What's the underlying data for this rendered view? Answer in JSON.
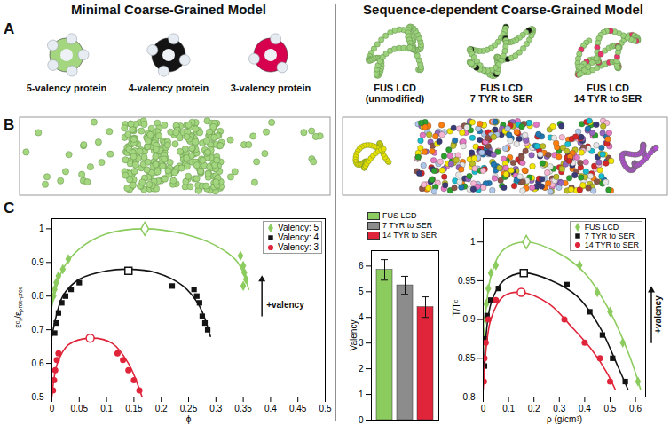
{
  "headings": [
    "Minimal Coarse-Grained Model",
    "Sequence-dependent Coarse-Grained Model"
  ],
  "panel_letters": [
    "A",
    "B",
    "C"
  ],
  "minimal_model": [
    {
      "label": "5-valency protein",
      "valency": 5,
      "color": "#a3d67f"
    },
    {
      "label": "4-valency protein",
      "valency": 4,
      "color": "#141414"
    },
    {
      "label": "3-valency protein",
      "valency": 3,
      "color": "#d6004f"
    }
  ],
  "sequence_model": [
    {
      "label_lines": [
        "FUS LCD",
        "(unmodified)"
      ],
      "modified_residues": 0,
      "chain_color": "#9bd17a",
      "color": "#141414"
    },
    {
      "label_lines": [
        "FUS LCD",
        "7 TYR to SER"
      ],
      "modified_residues": 7,
      "chain_color": "#9bd17a",
      "color": "#141414"
    },
    {
      "label_lines": [
        "FUS LCD",
        "14 TYR to SER"
      ],
      "modified_residues": 14,
      "chain_color": "#9bd17a",
      "color": "#e8336b"
    }
  ],
  "chart_data": [
    {
      "type": "scatter",
      "xlabel": "ϕ",
      "ylabel": "εᶜₛ/εₚᵣₒₜ₋ₚᵣₒₜ",
      "xlim": [
        0,
        0.5
      ],
      "xticks": [
        0,
        0.05,
        0.1,
        0.15,
        0.2,
        0.25,
        0.3,
        0.35,
        0.4,
        0.45,
        0.5
      ],
      "ylim": [
        0.5,
        1.03
      ],
      "yticks": [
        0.5,
        0.6,
        0.7,
        0.8,
        0.9,
        1
      ],
      "legend": "top-right",
      "annotations": [
        "+valency"
      ],
      "series": [
        {
          "name": "Valency: 5",
          "color": "#8ccb5e",
          "marker": "diamond",
          "x": [
            0.003,
            0.005,
            0.008,
            0.012,
            0.02,
            0.03,
            0.345,
            0.35,
            0.352,
            0.355,
            0.35
          ],
          "values": [
            0.8,
            0.82,
            0.84,
            0.86,
            0.88,
            0.91,
            0.92,
            0.89,
            0.87,
            0.85,
            0.83
          ],
          "critical": {
            "x": 0.17,
            "y": 1.0
          },
          "curve": {
            "x": [
              0,
              0.02,
              0.05,
              0.1,
              0.17,
              0.24,
              0.3,
              0.34,
              0.36
            ],
            "values": [
              0.77,
              0.88,
              0.94,
              0.985,
              1.0,
              0.985,
              0.95,
              0.9,
              0.82
            ]
          }
        },
        {
          "name": "Valency: 4",
          "color": "#141414",
          "marker": "square",
          "x": [
            0.005,
            0.008,
            0.012,
            0.018,
            0.025,
            0.035,
            0.05,
            0.22,
            0.26,
            0.265,
            0.27,
            0.275,
            0.28,
            0.285
          ],
          "values": [
            0.69,
            0.72,
            0.75,
            0.78,
            0.8,
            0.82,
            0.84,
            0.83,
            0.82,
            0.8,
            0.78,
            0.74,
            0.72,
            0.7
          ],
          "critical": {
            "x": 0.14,
            "y": 0.875
          },
          "curve": {
            "x": [
              0,
              0.02,
              0.05,
              0.1,
              0.14,
              0.19,
              0.24,
              0.27,
              0.29
            ],
            "values": [
              0.68,
              0.8,
              0.85,
              0.875,
              0.88,
              0.87,
              0.83,
              0.77,
              0.68
            ]
          }
        },
        {
          "name": "Valency: 3",
          "color": "#e0243a",
          "marker": "circle",
          "x": [
            0.002,
            0.004,
            0.006,
            0.009,
            0.012,
            0.12,
            0.13,
            0.14,
            0.15,
            0.16
          ],
          "values": [
            0.52,
            0.55,
            0.58,
            0.61,
            0.63,
            0.63,
            0.61,
            0.58,
            0.55,
            0.52
          ],
          "critical": {
            "x": 0.07,
            "y": 0.675
          },
          "curve": {
            "x": [
              0,
              0.01,
              0.03,
              0.07,
              0.11,
              0.14,
              0.165
            ],
            "values": [
              0.5,
              0.6,
              0.655,
              0.675,
              0.66,
              0.6,
              0.5
            ]
          }
        }
      ]
    },
    {
      "type": "bar",
      "ylabel": "Valency",
      "categories": [
        "FUS LCD",
        "7 TYR to SER",
        "14 TYR to SER"
      ],
      "values": [
        5.85,
        5.25,
        4.4
      ],
      "errors": [
        0.4,
        0.35,
        0.4
      ],
      "colors": [
        "#8ccb5e",
        "#8c8c8c",
        "#e0243a"
      ],
      "ylim": [
        0,
        6.6
      ],
      "yticks": [
        0,
        1,
        2,
        3,
        4,
        5,
        6
      ],
      "tick_labels": "y",
      "legend": "top"
    },
    {
      "type": "scatter",
      "xlabel": "ρ (g/cm³)",
      "ylabel": "T/Tᶜ",
      "xlim": [
        0,
        0.64
      ],
      "xticks": [
        0,
        0.1,
        0.2,
        0.3,
        0.4,
        0.5,
        0.6
      ],
      "ylim": [
        0.8,
        1.03
      ],
      "yticks": [
        0.8,
        0.85,
        0.9,
        0.95,
        1
      ],
      "legend": "top-right",
      "annotations": [
        "+valency"
      ],
      "series": [
        {
          "name": "FUS LCD",
          "color": "#8ccb5e",
          "marker": "diamond",
          "x": [
            0.005,
            0.008,
            0.012,
            0.02,
            0.03,
            0.05,
            0.38,
            0.45,
            0.5,
            0.55,
            0.61
          ],
          "values": [
            0.88,
            0.9,
            0.92,
            0.94,
            0.96,
            0.97,
            0.97,
            0.935,
            0.91,
            0.87,
            0.82
          ],
          "critical": {
            "x": 0.17,
            "y": 1.0
          },
          "curve": {
            "x": [
              0,
              0.03,
              0.08,
              0.17,
              0.3,
              0.4,
              0.5,
              0.58,
              0.62
            ],
            "values": [
              0.86,
              0.955,
              0.99,
              1.0,
              0.985,
              0.96,
              0.91,
              0.85,
              0.81
            ]
          }
        },
        {
          "name": "7 TYR to SER",
          "color": "#141414",
          "marker": "square",
          "x": [
            0.005,
            0.008,
            0.015,
            0.03,
            0.06,
            0.33,
            0.42,
            0.47,
            0.51,
            0.56
          ],
          "values": [
            0.84,
            0.875,
            0.905,
            0.925,
            0.94,
            0.945,
            0.91,
            0.88,
            0.85,
            0.82
          ],
          "critical": {
            "x": 0.16,
            "y": 0.96
          },
          "curve": {
            "x": [
              0,
              0.03,
              0.08,
              0.16,
              0.27,
              0.37,
              0.46,
              0.53,
              0.57
            ],
            "values": [
              0.82,
              0.92,
              0.95,
              0.96,
              0.95,
              0.93,
              0.89,
              0.84,
              0.81
            ]
          }
        },
        {
          "name": "14 TYR to SER",
          "color": "#e0243a",
          "marker": "circle",
          "x": [
            0.003,
            0.005,
            0.01,
            0.02,
            0.05,
            0.32,
            0.4,
            0.46,
            0.5
          ],
          "values": [
            0.82,
            0.85,
            0.87,
            0.9,
            0.925,
            0.9,
            0.87,
            0.85,
            0.82
          ],
          "critical": {
            "x": 0.15,
            "y": 0.935
          },
          "curve": {
            "x": [
              0,
              0.03,
              0.08,
              0.15,
              0.26,
              0.35,
              0.43,
              0.49,
              0.52
            ],
            "values": [
              0.81,
              0.9,
              0.93,
              0.935,
              0.92,
              0.89,
              0.86,
              0.83,
              0.81
            ]
          }
        }
      ]
    }
  ]
}
